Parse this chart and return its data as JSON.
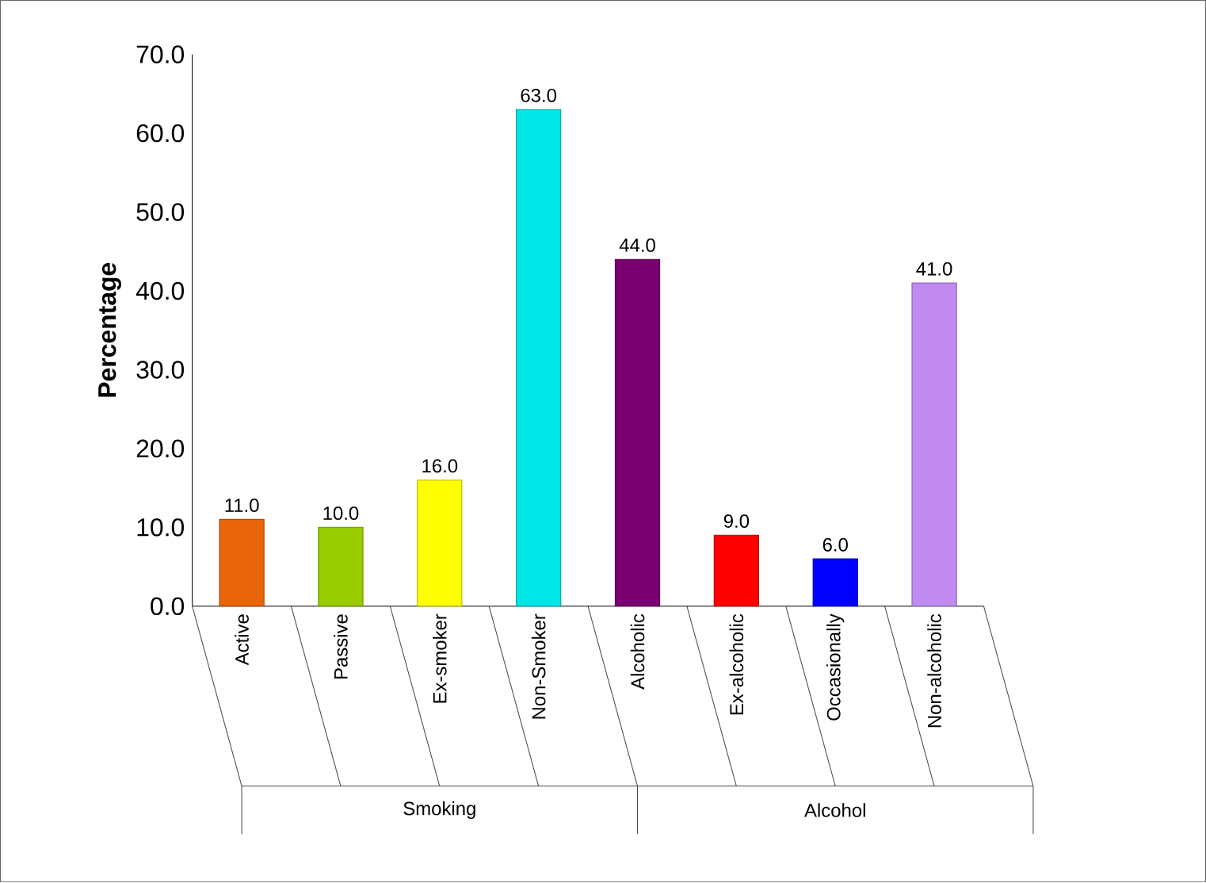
{
  "chart_data": {
    "type": "bar",
    "ylabel": "Percentage",
    "categories": [
      "Active",
      "Passive",
      "Ex-smoker",
      "Non-Smoker",
      "Alcoholic",
      "Ex-alcoholic",
      "Occasionally",
      "Non-alcoholic"
    ],
    "values": [
      11,
      10,
      16,
      63,
      44,
      9,
      6,
      41
    ],
    "value_labels": [
      "11.0",
      "10.0",
      "16.0",
      "63.0",
      "44.0",
      "9.0",
      "6.0",
      "41.0"
    ],
    "colors": [
      "#e8650a",
      "#99cc00",
      "#ffff00",
      "#00e5e5",
      "#7a0070",
      "#ff0000",
      "#0000ff",
      "#c08af0"
    ],
    "ylim": [
      0,
      70
    ],
    "yticks": [
      {
        "value": 0,
        "label": "0.0"
      },
      {
        "value": 10,
        "label": "10.0"
      },
      {
        "value": 20,
        "label": "20.0"
      },
      {
        "value": 30,
        "label": "30.0"
      },
      {
        "value": 40,
        "label": "40.0"
      },
      {
        "value": 50,
        "label": "50.0"
      },
      {
        "value": 60,
        "label": "60.0"
      },
      {
        "value": 70,
        "label": "70.0"
      }
    ],
    "annotations": [
      "Smoking",
      "Alcohol"
    ]
  }
}
